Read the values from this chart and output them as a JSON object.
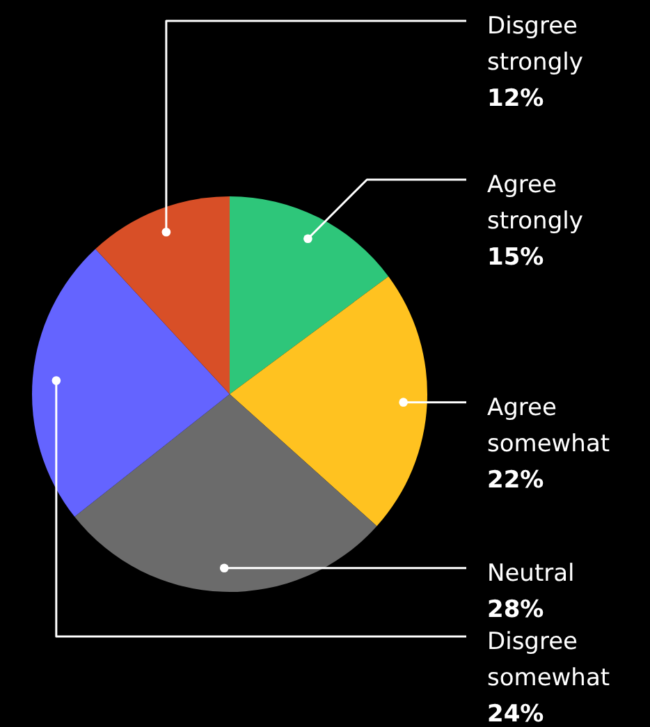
{
  "chart_data": {
    "type": "pie",
    "categories": [
      "Agree strongly",
      "Agree somewhat",
      "Neutral",
      "Disgree somewhat",
      "Disgree strongly"
    ],
    "values": [
      15,
      22,
      28,
      24,
      12
    ],
    "value_labels": [
      "15%",
      "22%",
      "28%",
      "24%",
      "12%"
    ],
    "colors": [
      "#2ec67a",
      "#ffc220",
      "#6b6b6b",
      "#6464ff",
      "#d84f27"
    ]
  }
}
